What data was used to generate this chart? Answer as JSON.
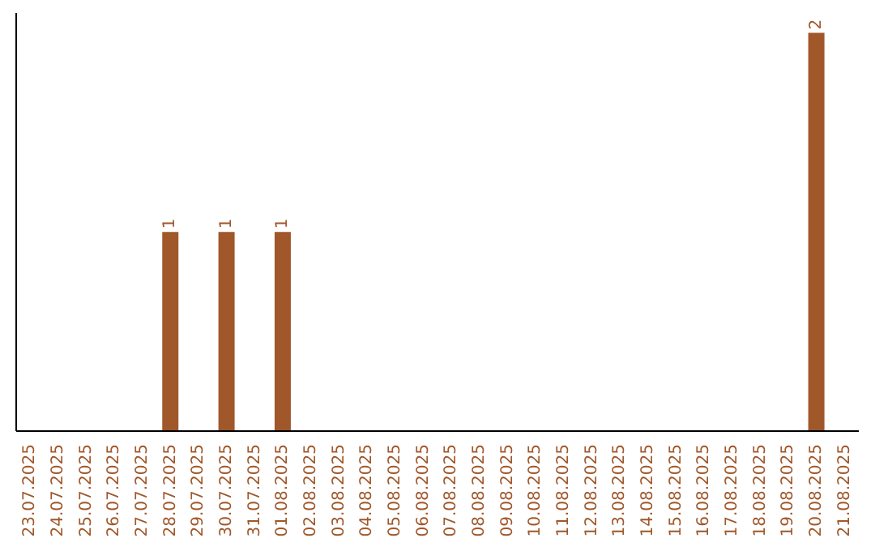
{
  "chart_data": {
    "type": "bar",
    "categories": [
      "23.07.2025",
      "24.07.2025",
      "25.07.2025",
      "26.07.2025",
      "27.07.2025",
      "28.07.2025",
      "29.07.2025",
      "30.07.2025",
      "31.07.2025",
      "01.08.2025",
      "02.08.2025",
      "03.08.2025",
      "04.08.2025",
      "05.08.2025",
      "06.08.2025",
      "07.08.2025",
      "08.08.2025",
      "09.08.2025",
      "10.08.2025",
      "11.08.2025",
      "12.08.2025",
      "13.08.2025",
      "14.08.2025",
      "15.08.2025",
      "16.08.2025",
      "17.08.2025",
      "18.08.2025",
      "19.08.2025",
      "20.08.2025",
      "21.08.2025"
    ],
    "values": [
      null,
      null,
      null,
      null,
      null,
      1,
      null,
      1,
      null,
      1,
      null,
      null,
      null,
      null,
      null,
      null,
      null,
      null,
      null,
      null,
      null,
      null,
      null,
      null,
      null,
      null,
      null,
      null,
      2,
      null
    ],
    "color": "#a0572a",
    "data_labels": true,
    "grid": false
  }
}
